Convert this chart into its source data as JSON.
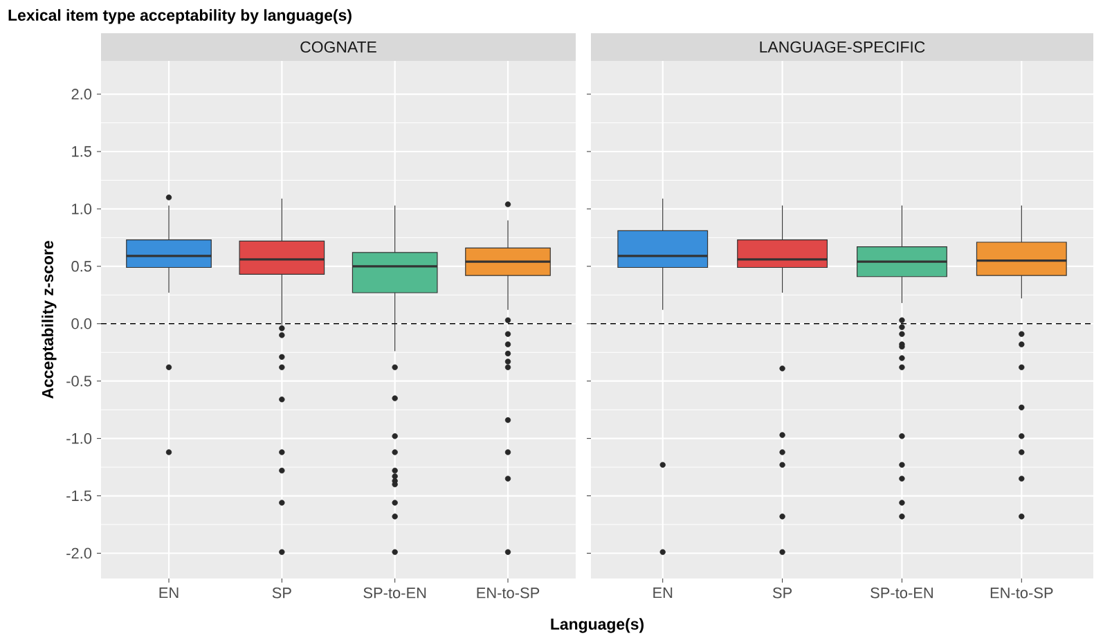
{
  "chart_data": [
    {
      "type": "box",
      "title": "Lexical item type acceptability by language(s)",
      "subtitle": "COGNATE",
      "xlabel": "Language(s)",
      "ylabel": "Acceptability z-score",
      "categories": [
        "EN",
        "SP",
        "SP-to-EN",
        "EN-to-SP"
      ],
      "colors": [
        "#3a8fdb",
        "#e04848",
        "#52ba90",
        "#ef9535"
      ],
      "boxes": [
        {
          "low": 0.27,
          "q1": 0.49,
          "median": 0.59,
          "q3": 0.73,
          "high": 1.03,
          "outliers": [
            1.1,
            -0.38,
            -1.12
          ]
        },
        {
          "low": -0.01,
          "q1": 0.43,
          "median": 0.56,
          "q3": 0.72,
          "high": 1.09,
          "outliers": [
            -0.04,
            -0.1,
            -0.29,
            -0.38,
            -0.66,
            -1.12,
            -1.28,
            -1.56,
            -1.99
          ]
        },
        {
          "low": -0.24,
          "q1": 0.27,
          "median": 0.5,
          "q3": 0.62,
          "high": 1.03,
          "outliers": [
            -0.38,
            -0.65,
            -0.98,
            -1.12,
            -1.28,
            -1.33,
            -1.37,
            -1.4,
            -1.56,
            -1.68,
            -1.99
          ]
        },
        {
          "low": 0.12,
          "q1": 0.42,
          "median": 0.54,
          "q3": 0.66,
          "high": 0.9,
          "outliers": [
            1.04,
            0.03,
            -0.09,
            -0.18,
            -0.26,
            -0.33,
            -0.38,
            -0.84,
            -1.12,
            -1.35,
            -1.99
          ]
        }
      ],
      "ylim": [
        -2.22,
        2.29
      ],
      "yticks": [
        {
          "value": -2,
          "label": "-2.0"
        },
        {
          "value": -1.5,
          "label": "-1.5"
        },
        {
          "value": -1,
          "label": "-1.0"
        },
        {
          "value": -0.5,
          "label": "-0.5"
        },
        {
          "value": 0,
          "label": "0.0"
        },
        {
          "value": 0.5,
          "label": "0.5"
        },
        {
          "value": 1,
          "label": "1.0"
        },
        {
          "value": 1.5,
          "label": "1.5"
        },
        {
          "value": 2,
          "label": "2.0"
        }
      ],
      "grid": true,
      "ref_lines": [
        {
          "axis": "y",
          "value": 0,
          "line_style": "dashed"
        }
      ]
    },
    {
      "type": "box",
      "subtitle": "LANGUAGE-SPECIFIC",
      "categories": [
        "EN",
        "SP",
        "SP-to-EN",
        "EN-to-SP"
      ],
      "colors": [
        "#3a8fdb",
        "#e04848",
        "#52ba90",
        "#ef9535"
      ],
      "boxes": [
        {
          "low": 0.12,
          "q1": 0.49,
          "median": 0.59,
          "q3": 0.81,
          "high": 1.09,
          "outliers": [
            -1.23,
            -1.99
          ]
        },
        {
          "low": 0.27,
          "q1": 0.49,
          "median": 0.56,
          "q3": 0.73,
          "high": 1.03,
          "outliers": [
            -0.39,
            -0.97,
            -1.12,
            -1.23,
            -1.68,
            -1.99
          ]
        },
        {
          "low": 0.18,
          "q1": 0.41,
          "median": 0.54,
          "q3": 0.67,
          "high": 1.03,
          "outliers": [
            0.03,
            -0.03,
            -0.09,
            -0.18,
            -0.2,
            -0.3,
            -0.38,
            -0.98,
            -1.23,
            -1.35,
            -1.56,
            -1.68
          ]
        },
        {
          "low": 0.22,
          "q1": 0.42,
          "median": 0.55,
          "q3": 0.71,
          "high": 1.03,
          "outliers": [
            -0.09,
            -0.18,
            -0.38,
            -0.73,
            -0.98,
            -1.12,
            -1.35,
            -1.68
          ]
        }
      ],
      "ylim": [
        -2.22,
        2.29
      ],
      "yticks": [
        {
          "value": -2,
          "label": null
        },
        {
          "value": -1.5,
          "label": null
        },
        {
          "value": -1,
          "label": null
        },
        {
          "value": -0.5,
          "label": null
        },
        {
          "value": 0,
          "label": null
        },
        {
          "value": 0.5,
          "label": null
        },
        {
          "value": 1,
          "label": null
        },
        {
          "value": 1.5,
          "label": null
        },
        {
          "value": 2,
          "label": null
        }
      ],
      "tick_labels": "x",
      "grid": true,
      "ref_lines": [
        {
          "axis": "y",
          "value": 0,
          "line_style": "dashed"
        }
      ]
    }
  ]
}
